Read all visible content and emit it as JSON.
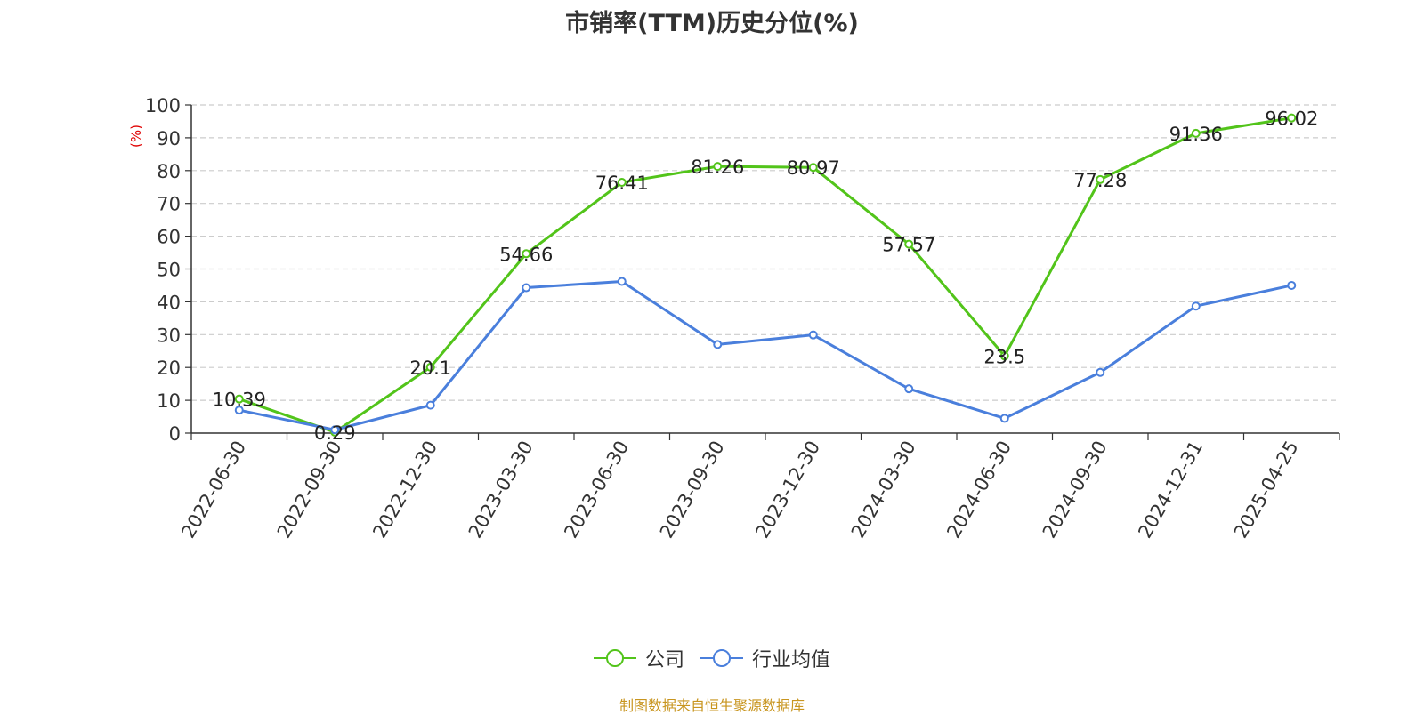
{
  "title": "市销率(TTM)历史分位(%)",
  "source_note": "制图数据来自恒生聚源数据库",
  "chart_data": {
    "type": "line",
    "title": "市销率(TTM)历史分位(%)",
    "ylabel": "(%)",
    "ylim": [
      0,
      100
    ],
    "yticks": [
      0,
      10,
      20,
      30,
      40,
      50,
      60,
      70,
      80,
      90,
      100
    ],
    "grid": true,
    "legend_position": "bottom",
    "categories": [
      "2022-06-30",
      "2022-09-30",
      "2022-12-30",
      "2023-03-30",
      "2023-06-30",
      "2023-09-30",
      "2023-12-30",
      "2024-03-30",
      "2024-06-30",
      "2024-09-30",
      "2024-12-31",
      "2025-04-25"
    ],
    "series": [
      {
        "name": "公司",
        "color": "#52c41a",
        "show_labels": true,
        "values": [
          10.39,
          0.29,
          20.1,
          54.66,
          76.41,
          81.26,
          80.97,
          57.57,
          23.5,
          77.28,
          91.36,
          96.02
        ]
      },
      {
        "name": "行业均值",
        "color": "#4a7fdc",
        "show_labels": false,
        "values": [
          7.0,
          1.0,
          8.5,
          44.3,
          46.2,
          27.0,
          29.9,
          13.5,
          4.5,
          18.5,
          38.7,
          45.0
        ]
      }
    ]
  }
}
